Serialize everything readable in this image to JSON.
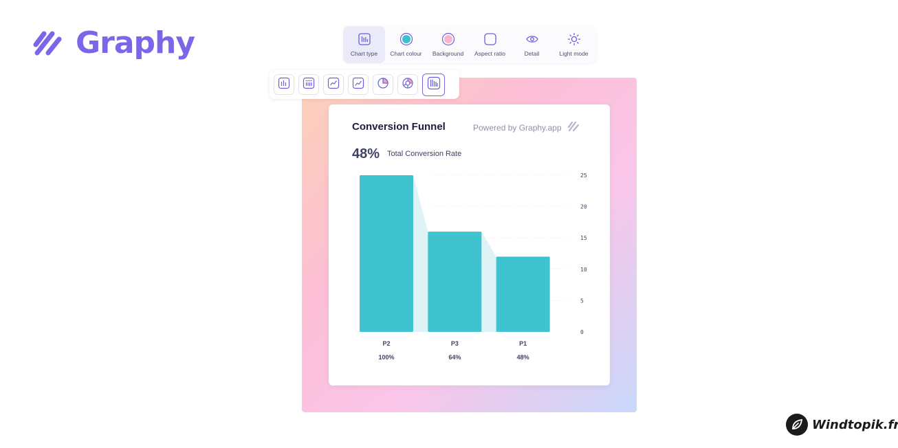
{
  "logo": {
    "text": "Graphy",
    "color": "#7a66e8"
  },
  "toolbar": {
    "items": [
      {
        "label": "Chart type",
        "icon": "bar-chart-icon",
        "active": true
      },
      {
        "label": "Chart colour",
        "icon": "color-dot-icon",
        "color": "#3cc2ce"
      },
      {
        "label": "Background",
        "icon": "background-dot-icon",
        "color": "#f7b5cf"
      },
      {
        "label": "Aspect ratio",
        "icon": "aspect-ratio-icon"
      },
      {
        "label": "Detail",
        "icon": "eye-icon"
      },
      {
        "label": "Light mode",
        "icon": "sun-icon"
      }
    ]
  },
  "chart_types": [
    {
      "icon": "bar-chart-icon"
    },
    {
      "icon": "dot-bar-chart-icon"
    },
    {
      "icon": "line-chart-icon"
    },
    {
      "icon": "area-line-chart-icon"
    },
    {
      "icon": "pie-chart-icon"
    },
    {
      "icon": "donut-chart-icon"
    },
    {
      "icon": "funnel-chart-icon",
      "active": true
    }
  ],
  "card": {
    "title": "Conversion Funnel",
    "powered_by": "Powered by Graphy.app",
    "kpi_value": "48%",
    "kpi_label": "Total Conversion Rate"
  },
  "chart_data": {
    "type": "bar",
    "title": "Conversion Funnel",
    "categories": [
      "P2",
      "P3",
      "P1"
    ],
    "values": [
      25,
      16,
      12
    ],
    "percentages": [
      "100%",
      "64%",
      "48%"
    ],
    "ylim": [
      0,
      25
    ],
    "yticks": [
      0,
      5,
      10,
      15,
      20,
      25
    ],
    "grid": true,
    "bar_color": "#3fc3cf",
    "funnel_fill_color": "#dff3f6"
  },
  "watermark": {
    "text": "Windtopik.fr"
  }
}
